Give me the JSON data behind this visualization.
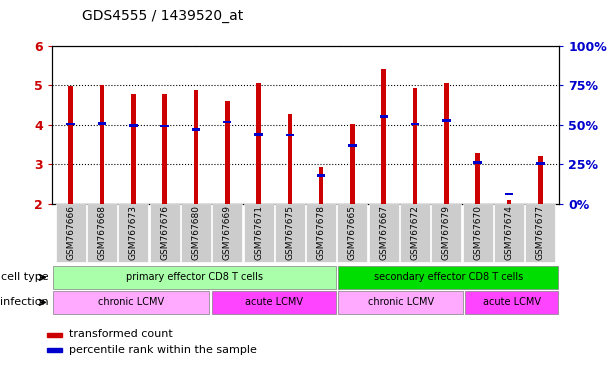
{
  "title": "GDS4555 / 1439520_at",
  "samples": [
    "GSM767666",
    "GSM767668",
    "GSM767673",
    "GSM767676",
    "GSM767680",
    "GSM767669",
    "GSM767671",
    "GSM767675",
    "GSM767678",
    "GSM767665",
    "GSM767667",
    "GSM767672",
    "GSM767679",
    "GSM767670",
    "GSM767674",
    "GSM767677"
  ],
  "red_values": [
    4.99,
    5.0,
    4.78,
    4.77,
    4.88,
    4.6,
    5.07,
    4.27,
    2.92,
    4.02,
    5.42,
    4.93,
    5.06,
    3.28,
    2.1,
    3.22
  ],
  "blue_values": [
    4.02,
    4.03,
    3.98,
    3.97,
    3.88,
    4.07,
    3.76,
    3.74,
    2.72,
    3.48,
    4.22,
    4.02,
    4.1,
    3.04,
    2.24,
    3.01
  ],
  "y_min": 2.0,
  "y_max": 6.0,
  "y_ticks": [
    2,
    3,
    4,
    5,
    6
  ],
  "y2_ticks": [
    0,
    25,
    50,
    75,
    100
  ],
  "y2_tick_labels": [
    "0%",
    "25%",
    "50%",
    "75%",
    "100%"
  ],
  "cell_type_groups": [
    {
      "label": "primary effector CD8 T cells",
      "start": 0,
      "end": 9,
      "color": "#AAFFAA"
    },
    {
      "label": "secondary effector CD8 T cells",
      "start": 9,
      "end": 16,
      "color": "#00DD00"
    }
  ],
  "infection_groups": [
    {
      "label": "chronic LCMV",
      "start": 0,
      "end": 5,
      "color": "#FFAAFF"
    },
    {
      "label": "acute LCMV",
      "start": 5,
      "end": 9,
      "color": "#FF44FF"
    },
    {
      "label": "chronic LCMV",
      "start": 9,
      "end": 13,
      "color": "#FFAAFF"
    },
    {
      "label": "acute LCMV",
      "start": 13,
      "end": 16,
      "color": "#FF44FF"
    }
  ],
  "bar_color": "#CC0000",
  "blue_color": "#0000CC",
  "bar_width": 0.15,
  "bg_color": "#FFFFFF",
  "legend_red": "transformed count",
  "legend_blue": "percentile rank within the sample",
  "cell_type_label": "cell type",
  "infection_label": "infection",
  "grid_color": "#000000",
  "y_tick_color": "#CC0000",
  "y2_color": "#0000CC",
  "xtick_bg": "#CCCCCC"
}
